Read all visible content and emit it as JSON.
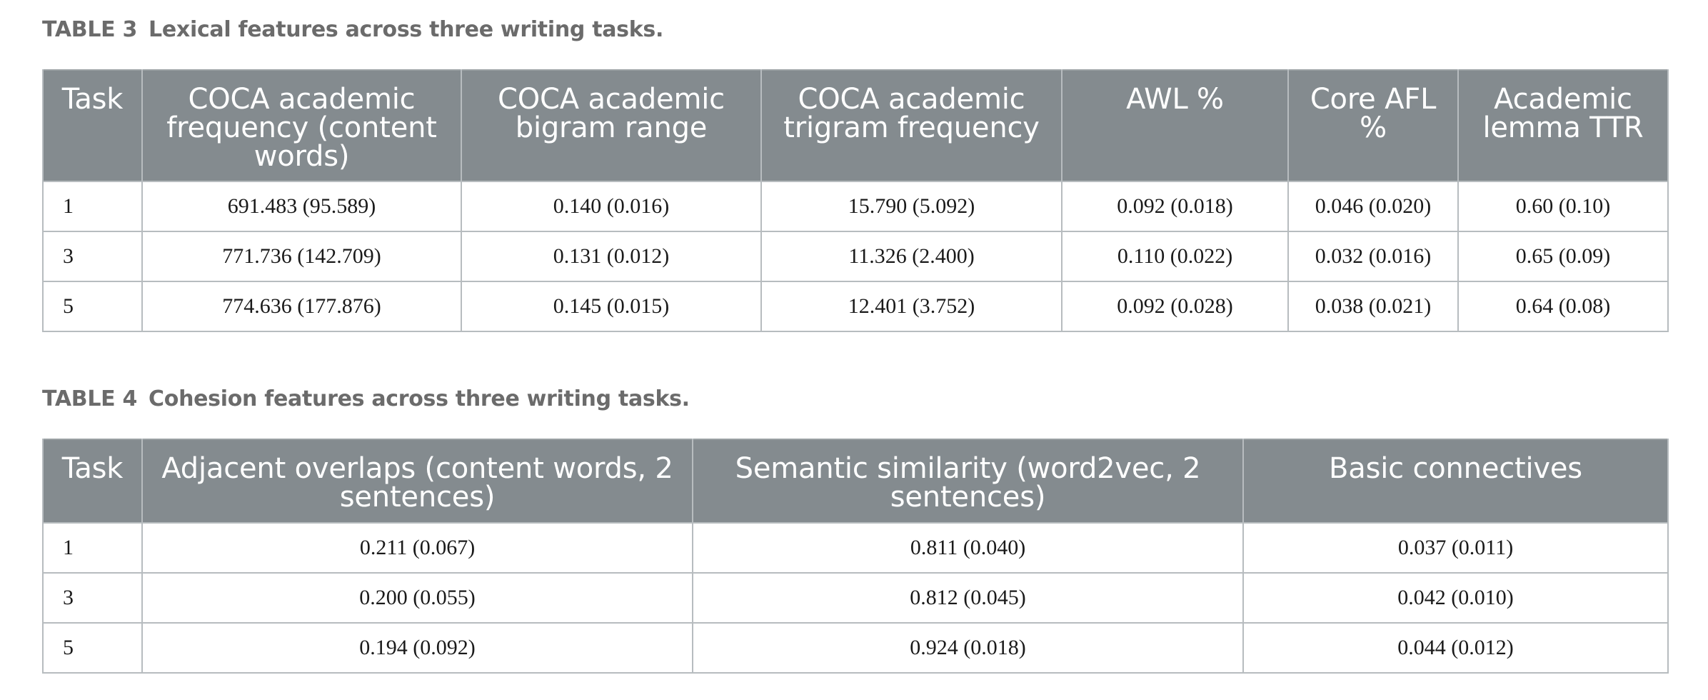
{
  "table3": {
    "label": "TABLE 3",
    "caption": "Lexical features across three writing tasks.",
    "headers": [
      "Task",
      "COCA academic frequency (content words)",
      "COCA academic bigram range",
      "COCA academic trigram frequency",
      "AWL %",
      "Core AFL %",
      "Academic lemma TTR"
    ],
    "rows": [
      [
        "1",
        "691.483 (95.589)",
        "0.140 (0.016)",
        "15.790 (5.092)",
        "0.092 (0.018)",
        "0.046 (0.020)",
        "0.60 (0.10)"
      ],
      [
        "3",
        "771.736 (142.709)",
        "0.131 (0.012)",
        "11.326 (2.400)",
        "0.110 (0.022)",
        "0.032 (0.016)",
        "0.65 (0.09)"
      ],
      [
        "5",
        "774.636 (177.876)",
        "0.145 (0.015)",
        "12.401 (3.752)",
        "0.092 (0.028)",
        "0.038 (0.021)",
        "0.64 (0.08)"
      ]
    ]
  },
  "table4": {
    "label": "TABLE 4",
    "caption": "Cohesion features across three writing tasks.",
    "headers": [
      "Task",
      "Adjacent overlaps (content words, 2 sentences)",
      "Semantic similarity (word2vec, 2 sentences)",
      "Basic connectives"
    ],
    "rows": [
      [
        "1",
        "0.211 (0.067)",
        "0.811 (0.040)",
        "0.037 (0.011)"
      ],
      [
        "3",
        "0.200 (0.055)",
        "0.812 (0.045)",
        "0.042 (0.010)"
      ],
      [
        "5",
        "0.194 (0.092)",
        "0.924 (0.018)",
        "0.044 (0.012)"
      ]
    ]
  }
}
